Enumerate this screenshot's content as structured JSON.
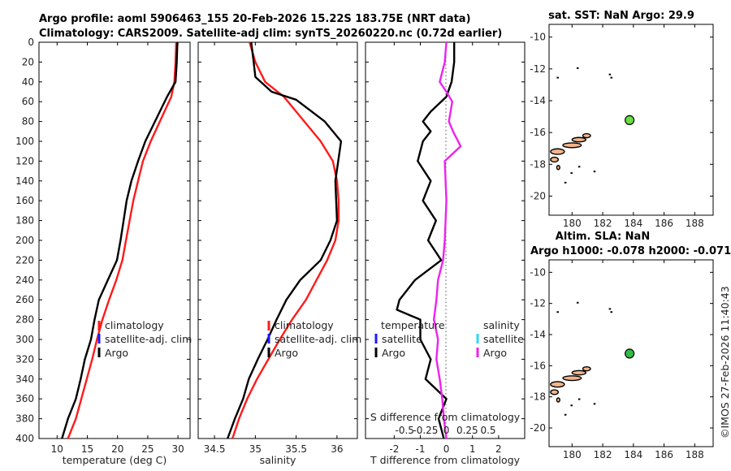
{
  "figure": {
    "title_line1": "Argo profile: aoml 5906463_155 20-Feb-2026 15.22S 183.75E (NRT data)",
    "title_line2": "Climatology: CARS2009. Satellite-adj clim: synTS_20260220.nc (0.72d earlier)",
    "timestamp": "©IMOS 27-Feb-2026 11:40:43"
  },
  "colors": {
    "climatology": "#ff1a1a",
    "satellite": "#1a1aff",
    "satellite_salinity": "#33d6f0",
    "argo": "#000000",
    "argo_salinity": "#ee22ee",
    "land": "#f2b48c"
  },
  "chart_data": [
    {
      "type": "line",
      "id": "temperature",
      "xlabel": "temperature (deg C)",
      "xlim": [
        7,
        32
      ],
      "ylim": [
        0,
        400
      ],
      "xticks": [
        10,
        15,
        20,
        25,
        30
      ],
      "yticks": [
        0,
        20,
        40,
        60,
        80,
        100,
        120,
        140,
        160,
        180,
        200,
        220,
        240,
        260,
        280,
        300,
        320,
        340,
        360,
        380,
        400
      ],
      "legend": [
        "climatology",
        "satellite-adj. clim",
        "Argo"
      ],
      "series": [
        {
          "name": "climatology",
          "points": [
            [
              29.7,
              0
            ],
            [
              29.6,
              20
            ],
            [
              29.4,
              40
            ],
            [
              28.9,
              55
            ],
            [
              27.0,
              80
            ],
            [
              25.5,
              100
            ],
            [
              24.2,
              120
            ],
            [
              23.4,
              140
            ],
            [
              22.6,
              160
            ],
            [
              22.0,
              180
            ],
            [
              21.4,
              200
            ],
            [
              20.8,
              220
            ],
            [
              19.8,
              240
            ],
            [
              18.6,
              260
            ],
            [
              17.5,
              280
            ],
            [
              16.6,
              300
            ],
            [
              15.8,
              320
            ],
            [
              14.9,
              340
            ],
            [
              14.0,
              360
            ],
            [
              13.1,
              380
            ],
            [
              11.8,
              400
            ]
          ]
        },
        {
          "name": "Argo",
          "points": [
            [
              29.9,
              0
            ],
            [
              29.8,
              20
            ],
            [
              29.6,
              40
            ],
            [
              28.2,
              55
            ],
            [
              26.2,
              80
            ],
            [
              24.6,
              100
            ],
            [
              23.4,
              120
            ],
            [
              22.3,
              140
            ],
            [
              21.5,
              160
            ],
            [
              21.0,
              180
            ],
            [
              20.5,
              200
            ],
            [
              19.9,
              220
            ],
            [
              18.4,
              240
            ],
            [
              16.9,
              260
            ],
            [
              16.2,
              280
            ],
            [
              15.6,
              300
            ],
            [
              14.6,
              320
            ],
            [
              13.9,
              340
            ],
            [
              13.1,
              360
            ],
            [
              11.8,
              380
            ],
            [
              10.8,
              400
            ]
          ]
        }
      ]
    },
    {
      "type": "line",
      "id": "salinity",
      "xlabel": "salinity",
      "xlim": [
        34.3,
        36.25
      ],
      "ylim": [
        0,
        400
      ],
      "xticks": [
        34.5,
        35,
        35.5,
        36
      ],
      "legend": [
        "climatology",
        "satellite-adj. clim",
        "Argo"
      ],
      "series": [
        {
          "name": "climatology",
          "points": [
            [
              34.93,
              0
            ],
            [
              35.0,
              20
            ],
            [
              35.12,
              40
            ],
            [
              35.35,
              55
            ],
            [
              35.6,
              80
            ],
            [
              35.8,
              100
            ],
            [
              35.95,
              120
            ],
            [
              36.0,
              140
            ],
            [
              36.02,
              160
            ],
            [
              36.02,
              180
            ],
            [
              35.98,
              200
            ],
            [
              35.88,
              220
            ],
            [
              35.75,
              240
            ],
            [
              35.62,
              260
            ],
            [
              35.45,
              280
            ],
            [
              35.3,
              300
            ],
            [
              35.16,
              320
            ],
            [
              35.02,
              340
            ],
            [
              34.9,
              360
            ],
            [
              34.8,
              380
            ],
            [
              34.72,
              400
            ]
          ]
        },
        {
          "name": "Argo",
          "points": [
            [
              34.95,
              0
            ],
            [
              34.98,
              20
            ],
            [
              35.0,
              35
            ],
            [
              35.2,
              50
            ],
            [
              35.5,
              58
            ],
            [
              35.85,
              80
            ],
            [
              36.05,
              100
            ],
            [
              35.98,
              140
            ],
            [
              36.0,
              180
            ],
            [
              35.92,
              200
            ],
            [
              35.8,
              220
            ],
            [
              35.55,
              240
            ],
            [
              35.38,
              260
            ],
            [
              35.26,
              280
            ],
            [
              35.15,
              300
            ],
            [
              35.03,
              320
            ],
            [
              34.92,
              340
            ],
            [
              34.85,
              360
            ],
            [
              34.75,
              380
            ],
            [
              34.66,
              400
            ]
          ]
        }
      ]
    },
    {
      "type": "line",
      "id": "difference",
      "xlabel": "T difference from climatology",
      "xlabel_top": "S difference from climatology",
      "xlim": [
        -3.1,
        3.0
      ],
      "ylim": [
        0,
        400
      ],
      "xticks": [
        -2,
        -1,
        0,
        1,
        2
      ],
      "sticks_values": [
        -0.5,
        -0.25,
        0,
        0.25,
        0.5
      ],
      "sticks": [
        "-0.5",
        "-0.25",
        "0",
        "0.25",
        "0.5"
      ],
      "legend_temperature": {
        "header": "temperature",
        "satellite": "satellite",
        "argo": "Argo"
      },
      "legend_salinity": {
        "header": "salinity",
        "satellite": "satellite",
        "argo": "Argo"
      },
      "series": [
        {
          "name": "temperature",
          "points": [
            [
              0.3,
              0
            ],
            [
              0.3,
              20
            ],
            [
              0.2,
              40
            ],
            [
              0.0,
              55
            ],
            [
              -0.6,
              70
            ],
            [
              -0.9,
              80
            ],
            [
              -0.6,
              90
            ],
            [
              -0.9,
              100
            ],
            [
              -1.1,
              120
            ],
            [
              -0.6,
              140
            ],
            [
              -0.9,
              160
            ],
            [
              -0.4,
              180
            ],
            [
              -0.7,
              200
            ],
            [
              -0.2,
              220
            ],
            [
              -1.2,
              240
            ],
            [
              -1.8,
              260
            ],
            [
              -1.9,
              270
            ],
            [
              -1.0,
              280
            ],
            [
              -1.0,
              300
            ],
            [
              -0.6,
              320
            ],
            [
              -0.8,
              340
            ],
            [
              0.0,
              360
            ],
            [
              -0.3,
              380
            ],
            [
              -0.1,
              400
            ]
          ]
        },
        {
          "name": "salinity",
          "points": [
            [
              0.0,
              0
            ],
            [
              -0.02,
              20
            ],
            [
              -0.08,
              40
            ],
            [
              0.0,
              50
            ],
            [
              0.07,
              60
            ],
            [
              0.03,
              80
            ],
            [
              0.08,
              90
            ],
            [
              0.17,
              105
            ],
            [
              -0.02,
              120
            ],
            [
              0.0,
              160
            ],
            [
              -0.02,
              200
            ],
            [
              -0.04,
              220
            ],
            [
              -0.1,
              240
            ],
            [
              -0.12,
              260
            ],
            [
              -0.15,
              280
            ],
            [
              -0.1,
              300
            ],
            [
              -0.12,
              320
            ],
            [
              -0.08,
              340
            ],
            [
              -0.05,
              360
            ],
            [
              -0.03,
              380
            ],
            [
              0.0,
              400
            ]
          ]
        }
      ]
    },
    {
      "type": "scatter",
      "id": "map_sst",
      "title": "sat. SST: NaN Argo: 29.9",
      "xlim": [
        178.5,
        189.2
      ],
      "ylim": [
        -21.2,
        -9.2
      ],
      "xticks": [
        180,
        182,
        184,
        186,
        188
      ],
      "yticks": [
        -10,
        -12,
        -14,
        -16,
        -18,
        -20
      ],
      "argo_position": [
        183.75,
        -15.22
      ]
    },
    {
      "type": "scatter",
      "id": "map_sla",
      "title": "Altim. SLA: NaN",
      "subtitle": "Argo h1000: -0.078 h2000: -0.071",
      "xlim": [
        178.5,
        189.2
      ],
      "ylim": [
        -21.2,
        -9.2
      ],
      "xticks": [
        180,
        182,
        184,
        186,
        188
      ],
      "yticks": [
        -10,
        -12,
        -14,
        -16,
        -18,
        -20
      ],
      "argo_position": [
        183.75,
        -15.22
      ]
    }
  ]
}
